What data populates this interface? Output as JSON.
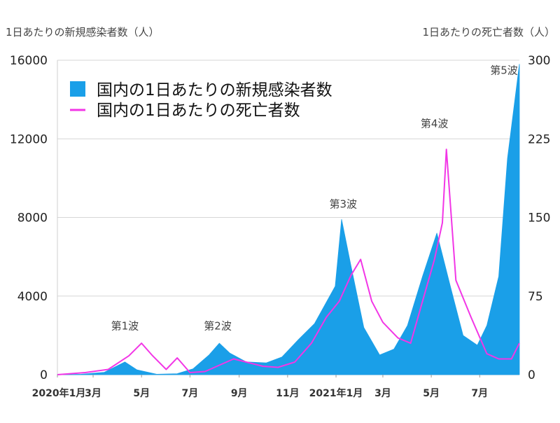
{
  "chart_data": {
    "type": "area",
    "y_left_title": "1日あたりの新規感染者数（人）",
    "y_right_title": "1日あたりの死亡者数（人）",
    "y_left_ticks": [
      "0",
      "4000",
      "8000",
      "12000",
      "16000"
    ],
    "y_right_ticks": [
      "0",
      "75",
      "150",
      "225",
      "300"
    ],
    "y_left_range": [
      0,
      16000
    ],
    "y_right_range": [
      0,
      300
    ],
    "x_range": [
      "2020-01-16",
      "2021-08-20"
    ],
    "x_ticks": [
      {
        "date": "2020-01-01",
        "label": "2020年1月"
      },
      {
        "date": "2020-03-01",
        "label": "3月"
      },
      {
        "date": "2020-05-01",
        "label": "5月"
      },
      {
        "date": "2020-07-01",
        "label": "7月"
      },
      {
        "date": "2020-09-01",
        "label": "9月"
      },
      {
        "date": "2020-11-01",
        "label": "11月"
      },
      {
        "date": "2021-01-01",
        "label": "2021年1月"
      },
      {
        "date": "2021-03-01",
        "label": "3月"
      },
      {
        "date": "2021-05-01",
        "label": "5月"
      },
      {
        "date": "2021-07-01",
        "label": "7月"
      }
    ],
    "grid": true,
    "legend_position": "top-left",
    "series": [
      {
        "name": "国内の1日あたりの新規感染者数",
        "axis": "left",
        "color": "#1a9fe8",
        "points": [
          [
            "2020-01-16",
            0
          ],
          [
            "2020-02-15",
            20
          ],
          [
            "2020-03-15",
            120
          ],
          [
            "2020-04-10",
            650
          ],
          [
            "2020-04-25",
            250
          ],
          [
            "2020-05-20",
            20
          ],
          [
            "2020-06-15",
            50
          ],
          [
            "2020-07-05",
            300
          ],
          [
            "2020-07-25",
            1000
          ],
          [
            "2020-08-07",
            1600
          ],
          [
            "2020-08-20",
            1100
          ],
          [
            "2020-09-10",
            650
          ],
          [
            "2020-10-05",
            600
          ],
          [
            "2020-10-25",
            900
          ],
          [
            "2020-11-15",
            1800
          ],
          [
            "2020-12-05",
            2600
          ],
          [
            "2020-12-31",
            4500
          ],
          [
            "2021-01-08",
            7900
          ],
          [
            "2021-01-20",
            5500
          ],
          [
            "2021-02-05",
            2400
          ],
          [
            "2021-02-25",
            1000
          ],
          [
            "2021-03-15",
            1300
          ],
          [
            "2021-04-01",
            2500
          ],
          [
            "2021-04-20",
            5000
          ],
          [
            "2021-05-08",
            7200
          ],
          [
            "2021-05-25",
            4500
          ],
          [
            "2021-06-10",
            2000
          ],
          [
            "2021-06-28",
            1500
          ],
          [
            "2021-07-10",
            2500
          ],
          [
            "2021-07-25",
            5000
          ],
          [
            "2021-08-05",
            11000
          ],
          [
            "2021-08-20",
            15800
          ]
        ]
      },
      {
        "name": "国内の1日あたりの死亡者数",
        "axis": "right",
        "color": "#f236e6",
        "points": [
          [
            "2020-01-16",
            0
          ],
          [
            "2020-02-20",
            2
          ],
          [
            "2020-03-20",
            5
          ],
          [
            "2020-04-15",
            18
          ],
          [
            "2020-05-01",
            30
          ],
          [
            "2020-05-15",
            18
          ],
          [
            "2020-06-01",
            5
          ],
          [
            "2020-06-15",
            16
          ],
          [
            "2020-07-01",
            2
          ],
          [
            "2020-07-20",
            3
          ],
          [
            "2020-08-10",
            10
          ],
          [
            "2020-08-25",
            15
          ],
          [
            "2020-09-10",
            12
          ],
          [
            "2020-10-01",
            8
          ],
          [
            "2020-10-20",
            7
          ],
          [
            "2020-11-10",
            12
          ],
          [
            "2020-12-01",
            30
          ],
          [
            "2020-12-20",
            55
          ],
          [
            "2021-01-05",
            70
          ],
          [
            "2021-01-20",
            95
          ],
          [
            "2021-02-01",
            110
          ],
          [
            "2021-02-15",
            70
          ],
          [
            "2021-03-01",
            50
          ],
          [
            "2021-03-20",
            35
          ],
          [
            "2021-04-05",
            30
          ],
          [
            "2021-04-20",
            70
          ],
          [
            "2021-05-05",
            110
          ],
          [
            "2021-05-15",
            145
          ],
          [
            "2021-05-20",
            215
          ],
          [
            "2021-06-01",
            90
          ],
          [
            "2021-06-20",
            55
          ],
          [
            "2021-07-10",
            20
          ],
          [
            "2021-07-25",
            15
          ],
          [
            "2021-08-10",
            15
          ],
          [
            "2021-08-20",
            30
          ]
        ]
      }
    ],
    "annotations": [
      {
        "label": "第1波",
        "date": "2020-04-10",
        "value": 2300
      },
      {
        "label": "第2波",
        "date": "2020-08-05",
        "value": 2300
      },
      {
        "label": "第3波",
        "date": "2021-01-10",
        "value": 8500
      },
      {
        "label": "第4波",
        "date": "2021-05-05",
        "value": 12600
      },
      {
        "label": "第5波",
        "date": "2021-08-10",
        "value": 15300
      }
    ]
  }
}
